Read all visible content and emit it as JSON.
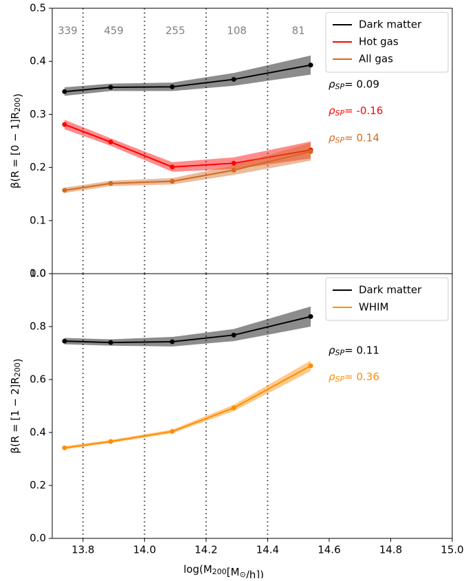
{
  "chart_data": [
    {
      "type": "line",
      "ylabel": [
        {
          "text": "β(R = [0 − 1]R"
        },
        {
          "sub": "200"
        },
        {
          "text": ")"
        }
      ],
      "xlim": [
        13.7,
        15.0
      ],
      "ylim": [
        0,
        0.5
      ],
      "yticks": [
        {
          "value": 0,
          "label": "0.0"
        },
        0.1,
        0.2,
        0.3,
        0.4,
        0.5
      ],
      "vlines": [
        13.8,
        14.0,
        14.2,
        14.4
      ],
      "vline_centers": [
        13.75,
        13.9,
        14.1,
        14.3,
        14.5
      ],
      "counts": [
        339,
        459,
        255,
        108,
        81
      ],
      "x": [
        13.74,
        13.89,
        14.09,
        14.29,
        14.54
      ],
      "legend": "upper right",
      "series": [
        {
          "name": "Dark matter",
          "color": "#000000",
          "values": [
            0.343,
            0.351,
            0.352,
            0.366,
            0.393
          ],
          "lower": [
            0.335,
            0.344,
            0.344,
            0.354,
            0.375
          ],
          "upper": [
            0.351,
            0.358,
            0.36,
            0.378,
            0.411
          ],
          "rho": {
            "symbol": "ρ",
            "sub": "SP",
            "text": "= 0.09",
            "y": 0.357
          }
        },
        {
          "name": "Hot gas",
          "color": "#ff0000",
          "values": [
            0.281,
            0.248,
            0.201,
            0.208,
            0.233
          ],
          "lower": [
            0.272,
            0.241,
            0.192,
            0.197,
            0.217
          ],
          "upper": [
            0.29,
            0.255,
            0.21,
            0.219,
            0.249
          ],
          "rho": {
            "symbol": "ρ",
            "sub": "SP",
            "text": "= -0.16",
            "y": 0.307
          }
        },
        {
          "name": "All gas",
          "color": "#d2691e",
          "values": [
            0.157,
            0.17,
            0.174,
            0.195,
            0.23
          ],
          "lower": [
            0.152,
            0.165,
            0.168,
            0.186,
            0.213
          ],
          "upper": [
            0.162,
            0.175,
            0.18,
            0.204,
            0.247
          ],
          "rho": {
            "symbol": "ρ",
            "sub": "SP",
            "text": "= 0.14",
            "y": 0.256
          }
        }
      ]
    },
    {
      "type": "line",
      "ylabel": [
        {
          "text": "β(R = [1 − 2]R"
        },
        {
          "sub": "200"
        },
        {
          "text": ")"
        }
      ],
      "xlabel": [
        {
          "text": "log(M"
        },
        {
          "sub": "200"
        },
        {
          "text": "[M"
        },
        {
          "sub": "⊙"
        },
        {
          "text": "/h])"
        }
      ],
      "xlim": [
        13.7,
        15.0
      ],
      "ylim": [
        0,
        1.0
      ],
      "xticks": [
        13.8,
        {
          "value": 14.0,
          "label": "14.0"
        },
        14.2,
        14.4,
        14.6,
        14.8,
        {
          "value": 15.0,
          "label": "15.0"
        }
      ],
      "yticks": [
        {
          "value": 0,
          "label": "0.0"
        },
        0.2,
        0.4,
        0.6,
        0.8,
        {
          "value": 1.0,
          "label": "1.0"
        }
      ],
      "vlines": [
        13.8,
        14.0,
        14.2,
        14.4
      ],
      "x": [
        13.74,
        13.89,
        14.09,
        14.29,
        14.54
      ],
      "legend": "upper right",
      "series": [
        {
          "name": "Dark matter",
          "color": "#000000",
          "values": [
            0.745,
            0.74,
            0.743,
            0.768,
            0.838
          ],
          "lower": [
            0.733,
            0.728,
            0.725,
            0.745,
            0.8
          ],
          "upper": [
            0.757,
            0.752,
            0.761,
            0.791,
            0.876
          ],
          "rho": {
            "symbol": "ρ",
            "sub": "SP",
            "text": "= 0.11",
            "y": 0.71
          }
        },
        {
          "name": "WHIM",
          "color": "#ff8c00",
          "values": [
            0.342,
            0.366,
            0.404,
            0.493,
            0.652
          ],
          "lower": [
            0.336,
            0.36,
            0.397,
            0.481,
            0.632
          ],
          "upper": [
            0.348,
            0.372,
            0.411,
            0.505,
            0.672
          ],
          "rho": {
            "symbol": "ρ",
            "sub": "SP",
            "text": "= 0.36",
            "y": 0.61
          }
        }
      ]
    }
  ]
}
